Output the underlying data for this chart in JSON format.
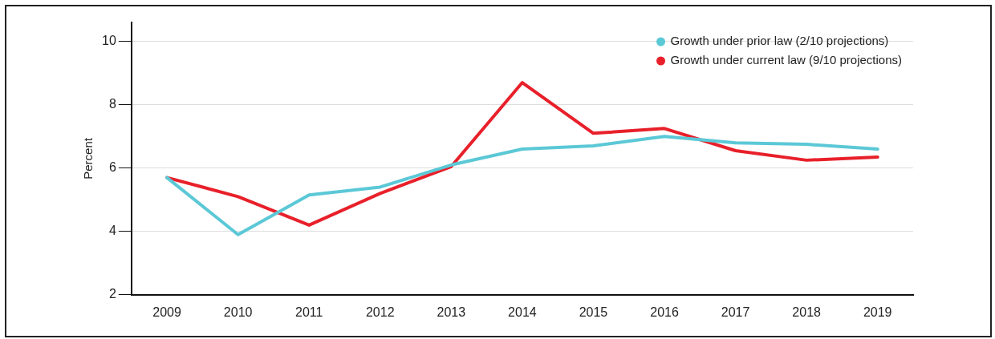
{
  "chart_data": {
    "type": "line",
    "ylabel": "Percent",
    "categories": [
      "2009",
      "2010",
      "2011",
      "2012",
      "2013",
      "2014",
      "2015",
      "2016",
      "2017",
      "2018",
      "2019"
    ],
    "series": [
      {
        "name": "Growth under prior law (2/10 projections)",
        "color": "#5bc8d6",
        "values": [
          5.7,
          3.9,
          5.15,
          5.4,
          6.1,
          6.6,
          6.7,
          7.0,
          6.8,
          6.75,
          6.6
        ]
      },
      {
        "name": "Growth under current law (9/10 projections)",
        "color": "#e8202a",
        "values": [
          5.7,
          5.1,
          4.2,
          5.2,
          6.05,
          8.7,
          7.1,
          7.25,
          6.55,
          6.25,
          6.35
        ]
      }
    ],
    "ylim": [
      2,
      10.6
    ],
    "yticks": [
      2,
      4,
      6,
      8,
      10
    ],
    "grid": "y",
    "legend": "top right",
    "marker": "none",
    "line_style": "solid"
  }
}
